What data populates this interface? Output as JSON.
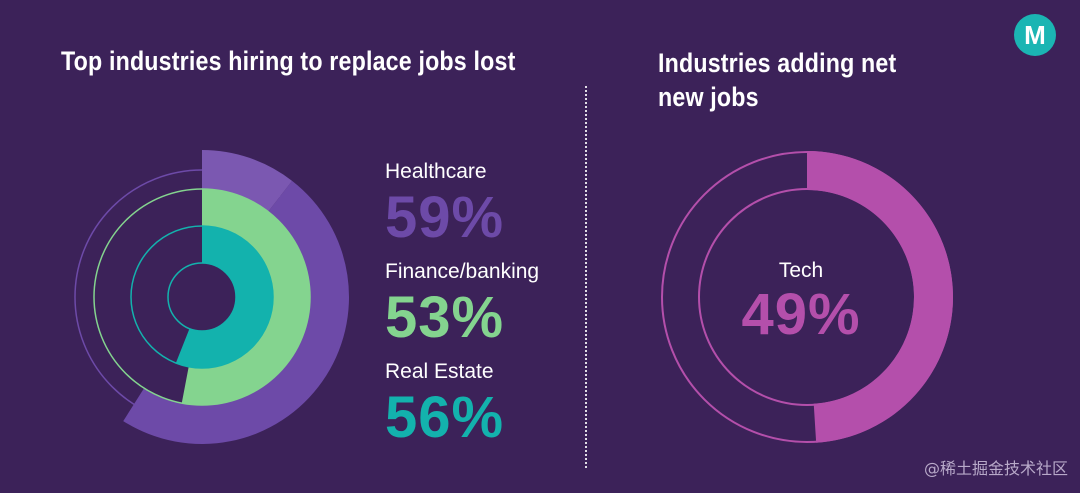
{
  "brand": {
    "logo_letter": "M",
    "logo_color": "#1bb5b3"
  },
  "watermark": "@稀土掘金技术社区",
  "colors": {
    "background": "#3c2259",
    "healthcare": "#6d4aa8",
    "healthcare_light": "#7b58b1",
    "finance": "#84d48f",
    "realestate": "#13b2ad",
    "tech": "#b44fab"
  },
  "chart_data": [
    {
      "type": "pie",
      "title": "Top industries hiring to replace jobs lost",
      "series": [
        {
          "name": "Healthcare",
          "value": 59,
          "label": "59%",
          "color": "#6d4aa8"
        },
        {
          "name": "Finance/banking",
          "value": 53,
          "label": "53%",
          "color": "#84d48f"
        },
        {
          "name": "Real Estate",
          "value": 56,
          "label": "56%",
          "color": "#13b2ad"
        }
      ]
    },
    {
      "type": "pie",
      "title": "Industries adding net new jobs",
      "series": [
        {
          "name": "Tech",
          "value": 49,
          "label": "49%",
          "color": "#b44fab"
        }
      ]
    }
  ]
}
